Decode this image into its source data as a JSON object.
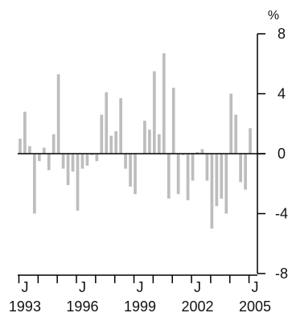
{
  "chart_data": {
    "type": "bar",
    "unit": "%",
    "ylim": [
      -8,
      8
    ],
    "y_ticks": [
      8,
      4,
      0,
      -4,
      -8
    ],
    "y_tick_labels": [
      "8",
      "4",
      "0",
      "-4",
      "-8"
    ],
    "x_ticks": [
      "J",
      "J",
      "J",
      "J",
      "J"
    ],
    "x_year_labels": [
      "1993",
      "1996",
      "1999",
      "2002",
      "2005"
    ],
    "x_label_quarter_index": [
      1,
      13,
      25,
      37,
      49
    ],
    "quarters_total": 50,
    "bar_color": "#bdbdbd",
    "values": [
      1.0,
      2.8,
      0.5,
      -4.0,
      -0.5,
      0.4,
      -1.1,
      1.3,
      5.3,
      -1.0,
      -2.1,
      -1.2,
      -3.8,
      -1.0,
      -0.8,
      -0.1,
      -0.5,
      2.6,
      4.1,
      1.2,
      1.5,
      3.7,
      -1.0,
      -2.2,
      -2.7,
      0.0,
      2.2,
      1.6,
      5.5,
      1.3,
      6.7,
      -3.0,
      4.4,
      -2.7,
      -0.1,
      -3.1,
      -1.8,
      0.1,
      0.3,
      -1.8,
      -5.0,
      -3.5,
      -3.0,
      -4.0,
      4.0,
      2.6,
      -1.9,
      -2.4,
      1.7,
      0.0
    ]
  }
}
